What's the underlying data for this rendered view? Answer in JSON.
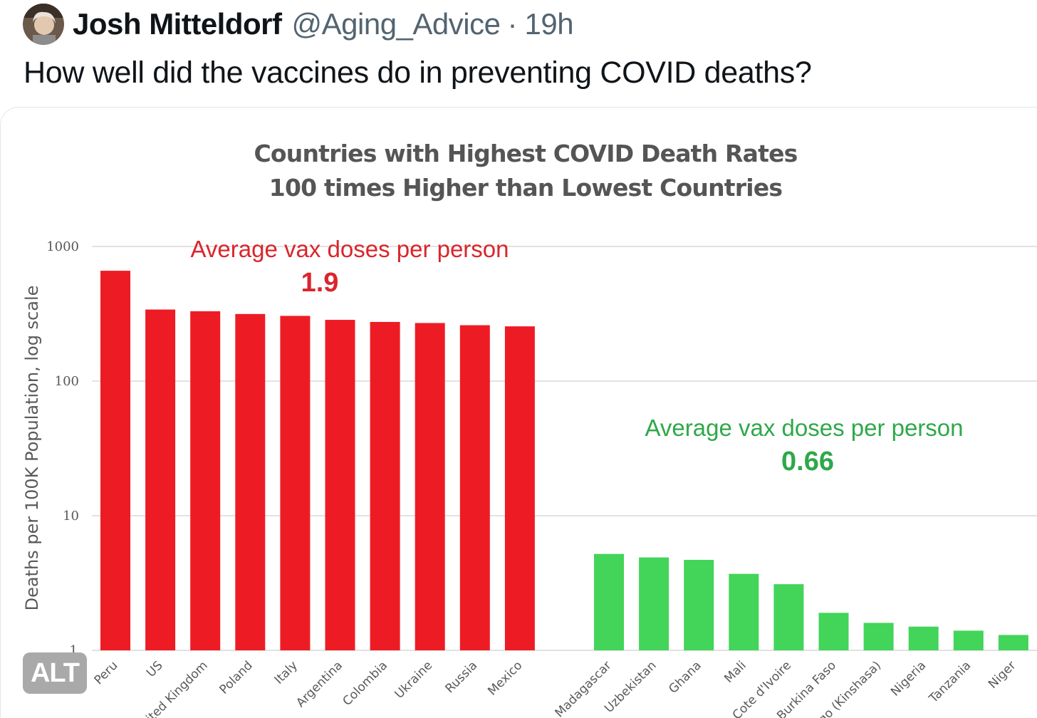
{
  "tweet": {
    "author_name": "Josh Mitteldorf",
    "handle": "@Aging_Advice",
    "separator": "·",
    "time": "19h",
    "text": "How well did the vaccines do in preventing COVID deaths?",
    "alt_badge": "ALT"
  },
  "colors": {
    "high": "#ed1c24",
    "low": "#43d45a",
    "annotation_high": "#d9262c",
    "annotation_low": "#2fa84a",
    "title": "#555555"
  },
  "chart_data": {
    "type": "bar",
    "title": [
      "Countries with Highest COVID Death Rates",
      "100 times Higher than Lowest Countries"
    ],
    "ylabel": "Deaths per 100K Population, log scale",
    "yscale": "log",
    "ylim": [
      1,
      1000
    ],
    "yticks": [
      1,
      10,
      100,
      1000
    ],
    "grid": true,
    "series": [
      {
        "name": "Highest",
        "color": "#ed1c24",
        "categories": [
          "Peru",
          "US",
          "United Kingdom",
          "Poland",
          "Italy",
          "Argentina",
          "Colombia",
          "Ukraine",
          "Russia",
          "Mexico"
        ],
        "values": [
          660,
          340,
          330,
          315,
          305,
          285,
          275,
          270,
          260,
          255
        ]
      },
      {
        "name": "Lowest",
        "color": "#43d45a",
        "categories": [
          "Madagascar",
          "Uzbekistan",
          "Ghana",
          "Mali",
          "Cote d'Ivoire",
          "Burkina Faso",
          "Congo (Kinshasa)",
          "Nigeria",
          "Tanzania",
          "Niger"
        ],
        "values": [
          5.2,
          4.9,
          4.7,
          3.7,
          3.1,
          1.9,
          1.6,
          1.5,
          1.4,
          1.3
        ]
      }
    ],
    "annotations": [
      {
        "text": "Average vax doses per person",
        "value": "1.9",
        "group": "high"
      },
      {
        "text": "Average vax doses per person",
        "value": "0.66",
        "group": "low"
      }
    ]
  }
}
